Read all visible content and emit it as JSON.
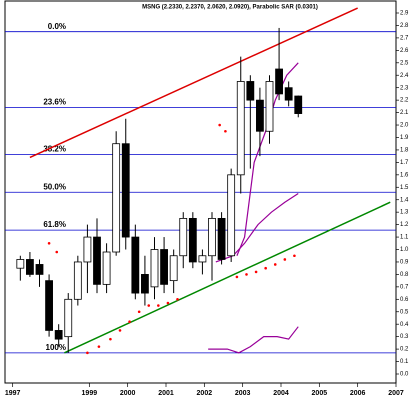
{
  "chart_data": {
    "type": "candlestick",
    "title": "MSNG (2.2330, 2.2370, 2.0620, 2.0920), Parabolic SAR (0.0301)",
    "x": [
      1997.2,
      1997.45,
      1997.7,
      1997.95,
      1998.2,
      1998.45,
      1998.7,
      1998.95,
      1999.2,
      1999.45,
      1999.7,
      1999.95,
      2000.2,
      2000.45,
      2000.7,
      2000.95,
      2001.2,
      2001.45,
      2001.7,
      2001.95,
      2002.2,
      2002.45,
      2002.7,
      2002.95,
      2003.2,
      2003.45,
      2003.7,
      2003.95,
      2004.2,
      2004.45
    ],
    "open": [
      0.85,
      0.92,
      0.88,
      0.75,
      0.35,
      0.3,
      0.6,
      0.9,
      1.1,
      0.72,
      0.98,
      1.85,
      1.1,
      0.8,
      0.7,
      1.0,
      0.75,
      0.95,
      1.25,
      0.9,
      0.95,
      1.25,
      0.95,
      1.6,
      2.35,
      2.2,
      1.95,
      2.45,
      2.3,
      2.233
    ],
    "high": [
      0.95,
      0.98,
      0.92,
      0.8,
      0.4,
      0.65,
      0.95,
      1.2,
      1.25,
      1.05,
      1.95,
      2.05,
      1.2,
      0.95,
      1.1,
      1.1,
      1.0,
      1.3,
      1.3,
      1.0,
      1.3,
      1.3,
      1.65,
      2.55,
      2.4,
      2.3,
      2.4,
      2.78,
      2.35,
      2.237
    ],
    "low": [
      0.75,
      0.78,
      0.7,
      0.3,
      0.22,
      0.17,
      0.55,
      0.65,
      0.65,
      0.65,
      0.95,
      1.0,
      0.6,
      0.55,
      0.6,
      0.65,
      0.65,
      0.85,
      0.85,
      0.8,
      0.75,
      0.88,
      0.9,
      1.45,
      1.65,
      1.75,
      1.85,
      2.2,
      2.15,
      2.062
    ],
    "close": [
      0.92,
      0.8,
      0.8,
      0.35,
      0.28,
      0.6,
      0.9,
      1.1,
      0.72,
      0.98,
      1.85,
      1.1,
      0.65,
      0.65,
      1.0,
      0.72,
      0.95,
      1.25,
      0.9,
      0.95,
      1.25,
      0.92,
      1.6,
      2.35,
      2.2,
      1.95,
      2.35,
      2.25,
      2.2,
      2.092
    ],
    "up_color": "#ffffff",
    "down_color": "#000000",
    "xlim": [
      1996.8,
      2007.0
    ],
    "xticks": [
      1997,
      1999,
      2000,
      2001,
      2002,
      2003,
      2004,
      2005,
      2006,
      2007
    ],
    "ylim": [
      0,
      3.0
    ],
    "yticks": [
      {
        "value": 0,
        "label": "0.0"
      },
      0.1,
      0.2,
      0.3,
      0.4,
      0.5,
      0.6,
      0.7,
      0.8,
      0.9,
      {
        "value": 1,
        "label": "1.0"
      },
      1.1,
      1.2,
      1.3,
      1.4,
      1.5,
      1.6,
      1.7,
      1.8,
      1.9,
      {
        "value": 2,
        "label": "2.0"
      },
      2.1,
      2.2,
      2.3,
      2.4,
      2.5,
      2.6,
      2.7,
      2.8,
      2.9
    ],
    "fibonacci": {
      "color": "#0000cc",
      "levels": [
        {
          "label": "0.0%",
          "value": 2.75
        },
        {
          "label": "23.6%",
          "value": 2.141
        },
        {
          "label": "38.2%",
          "value": 1.764
        },
        {
          "label": "50.0%",
          "value": 1.46
        },
        {
          "label": "61.8%",
          "value": 1.156
        },
        {
          "label": "100%",
          "value": 0.17
        }
      ]
    },
    "trendlines": [
      {
        "color": "#dd0000",
        "x": [
          1997.45,
          2006.0
        ],
        "y": [
          1.74,
          2.94
        ]
      },
      {
        "color": "#008800",
        "x": [
          1998.35,
          2006.85
        ],
        "y": [
          0.17,
          1.38
        ]
      }
    ],
    "sar": {
      "color": "#ff0000",
      "x": [
        1997.95,
        1998.15,
        1998.95,
        1999.25,
        1999.55,
        1999.8,
        2000.05,
        2000.3,
        2000.55,
        2000.8,
        2001.05,
        2001.3,
        2002.4,
        2002.55,
        2002.85,
        2003.1,
        2003.35,
        2003.6,
        2003.85,
        2004.1,
        2004.35
      ],
      "values": [
        1.05,
        0.98,
        0.17,
        0.22,
        0.28,
        0.35,
        0.42,
        0.5,
        0.55,
        0.55,
        0.57,
        0.6,
        2.0,
        1.95,
        0.78,
        0.8,
        0.82,
        0.85,
        0.88,
        0.92,
        0.95
      ]
    },
    "indicators": [
      {
        "color": "#990099",
        "x": [
          2002.85,
          2003.05,
          2003.3,
          2003.6,
          2003.85,
          2004.15,
          2004.45
        ],
        "values": [
          0.95,
          1.1,
          1.7,
          1.95,
          2.2,
          2.4,
          2.5
        ]
      },
      {
        "color": "#990099",
        "x": [
          2002.3,
          2002.75,
          2003.05,
          2003.4,
          2003.75,
          2004.1,
          2004.45
        ],
        "values": [
          0.9,
          0.95,
          1.05,
          1.2,
          1.3,
          1.38,
          1.45
        ]
      },
      {
        "color": "#990099",
        "x": [
          2002.1,
          2002.6,
          2002.9,
          2003.2,
          2003.55,
          2003.9,
          2004.2,
          2004.45
        ],
        "values": [
          0.2,
          0.2,
          0.17,
          0.22,
          0.3,
          0.3,
          0.28,
          0.38
        ]
      }
    ]
  }
}
